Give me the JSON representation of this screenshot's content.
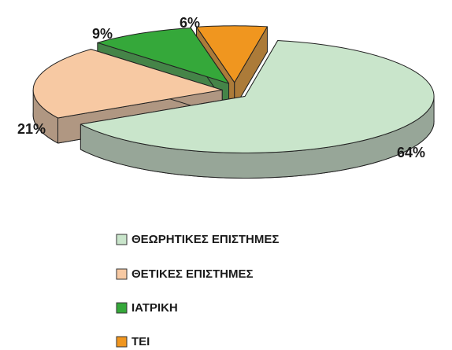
{
  "chart_data": {
    "type": "pie3d",
    "categories": [
      "ΘΕΩΡΗΤΙΚΕΣ ΕΠΙΣΤΗΜΕΣ",
      "ΘΕΤΙΚΕΣ ΕΠΙΣΤΗΜΕΣ",
      "ΙΑΤΡΙΚΗ",
      "ΤΕΙ"
    ],
    "values": [
      64,
      21,
      9,
      6
    ],
    "value_labels": [
      "64%",
      "21%",
      "9%",
      "6%"
    ],
    "colors": [
      "#c9e5cb",
      "#f7c9a3",
      "#35a83a",
      "#f0961f"
    ],
    "legend": "bottom"
  }
}
